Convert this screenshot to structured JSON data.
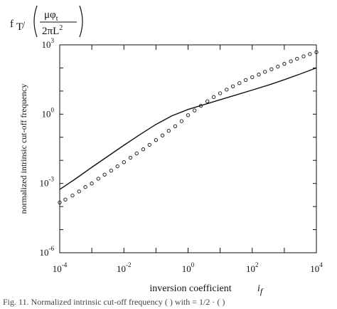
{
  "chart_data": {
    "type": "line",
    "ylabel": "normalized intrinsic cut-off frequency",
    "xlabel": "inversion coefficient",
    "xlabel_symbol": "i",
    "xlabel_subscript": "f",
    "corner_label": {
      "prefix": "f",
      "prefix_sub": "T",
      "slash": "/",
      "numerator": "μφ",
      "numerator_sub": "t",
      "denominator": "2πL",
      "denominator_sup": "2"
    },
    "x_scale": "log",
    "y_scale": "log",
    "xlim": [
      0.0001,
      10000
    ],
    "ylim": [
      1e-06,
      1000
    ],
    "x_ticks": [
      {
        "base": "10",
        "exp": "-4",
        "value": 0.0001
      },
      {
        "base": "10",
        "exp": "-2",
        "value": 0.01
      },
      {
        "base": "10",
        "exp": "0",
        "value": 1
      },
      {
        "base": "10",
        "exp": "2",
        "value": 100
      },
      {
        "base": "10",
        "exp": "4",
        "value": 10000
      }
    ],
    "y_ticks": [
      {
        "base": "10",
        "exp": "3",
        "value": 1000
      },
      {
        "base": "10",
        "exp": "0",
        "value": 1
      },
      {
        "base": "10",
        "exp": "-3",
        "value": 0.001
      },
      {
        "base": "10",
        "exp": "-6",
        "value": 1e-06
      }
    ],
    "grid": false,
    "series": [
      {
        "style": "solid-line",
        "color": "#111111",
        "x": [
          0.0001,
          0.000316,
          0.001,
          0.00316,
          0.01,
          0.0316,
          0.1,
          0.316,
          1,
          3.16,
          10,
          31.6,
          100,
          316,
          1000,
          3162,
          10000
        ],
        "y": [
          0.00055,
          0.0016,
          0.005,
          0.015,
          0.045,
          0.13,
          0.36,
          0.85,
          1.6,
          2.6,
          4.2,
          6.8,
          11,
          18,
          31,
          55,
          100
        ]
      },
      {
        "style": "open-circles",
        "color": "#111111",
        "x": [
          0.0001,
          0.00015,
          0.00025,
          0.0004,
          0.00063,
          0.001,
          0.0016,
          0.0025,
          0.004,
          0.0063,
          0.01,
          0.016,
          0.025,
          0.04,
          0.063,
          0.1,
          0.16,
          0.25,
          0.4,
          0.63,
          1,
          1.6,
          2.5,
          4,
          6.3,
          10,
          16,
          25,
          40,
          63,
          100,
          160,
          250,
          400,
          630,
          1000,
          1600,
          2500,
          4000,
          6300,
          10000
        ],
        "y": [
          0.00015,
          0.0002,
          0.0003,
          0.00045,
          0.0007,
          0.001,
          0.0016,
          0.0024,
          0.0036,
          0.0055,
          0.0083,
          0.013,
          0.02,
          0.03,
          0.047,
          0.075,
          0.12,
          0.19,
          0.3,
          0.5,
          0.9,
          1.45,
          2.3,
          3.6,
          5.5,
          8,
          11.5,
          16,
          22,
          30,
          40,
          52,
          68,
          88,
          115,
          150,
          195,
          250,
          320,
          400,
          480
        ]
      }
    ]
  },
  "caption": "Fig. 11.   Normalized intrinsic cut-off frequency (  ) with  = 1/2 · (  )"
}
